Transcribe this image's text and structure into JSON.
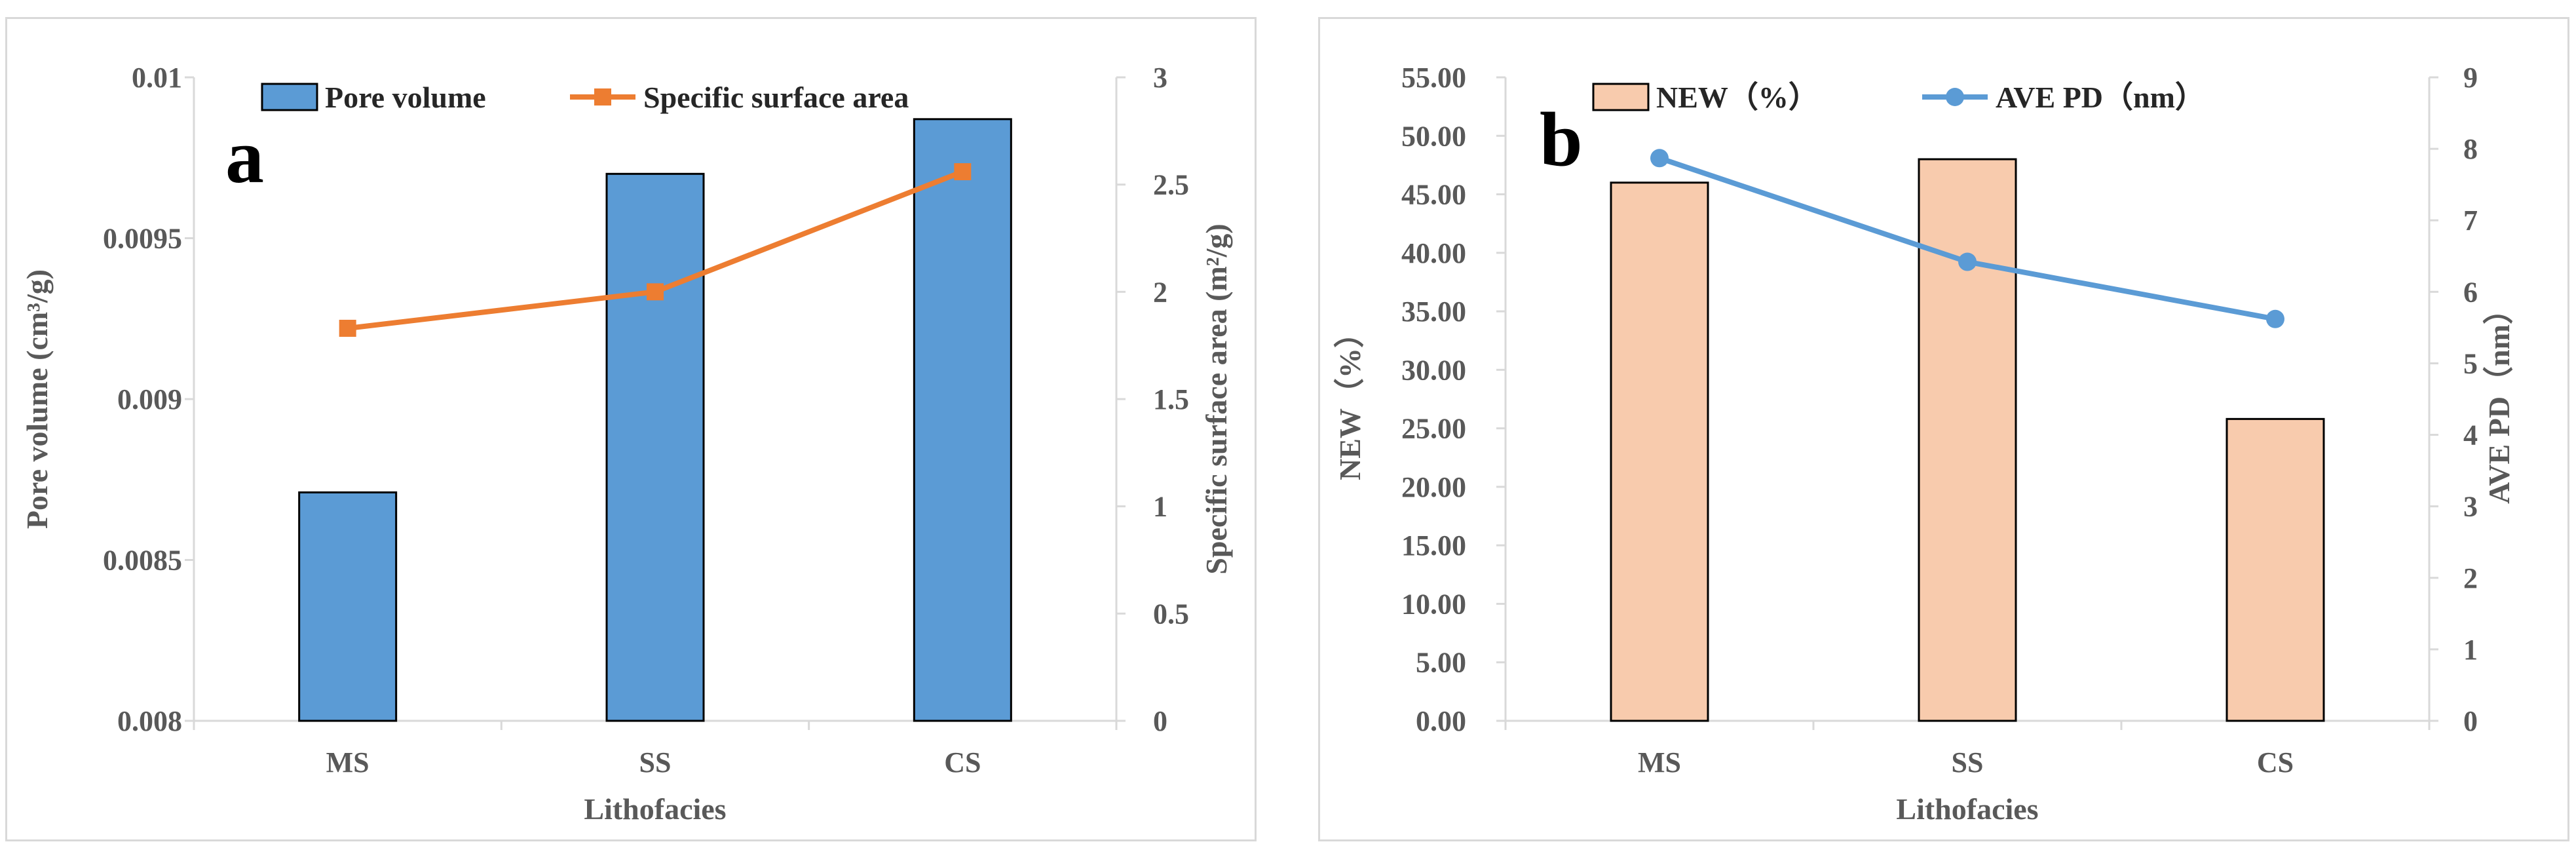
{
  "chart_data": [
    {
      "panel_label": "a",
      "type": "bar+line",
      "categories": [
        "MS",
        "SS",
        "CS"
      ],
      "xlabel": "Lithofacies",
      "series": [
        {
          "name": "Pore volume",
          "type": "bar",
          "axis": "left",
          "values": [
            0.00871,
            0.0097,
            0.00987
          ],
          "color": "#5b9bd5",
          "stroke": "#000000"
        },
        {
          "name": "Specific surface area",
          "type": "line",
          "axis": "right",
          "values": [
            1.83,
            2.0,
            2.56
          ],
          "color": "#ed7d31",
          "marker": "square"
        }
      ],
      "y_left": {
        "label": "Pore volume (cm³/g)",
        "lim": [
          0.008,
          0.01
        ],
        "ticks": [
          0.008,
          0.0085,
          0.009,
          0.0095,
          0.01
        ],
        "tick_labels": [
          "0.008",
          "0.0085",
          "0.009",
          "0.0095",
          "0.01"
        ]
      },
      "y_right": {
        "label": "Specific surface area (m²/g)",
        "lim": [
          0,
          3
        ],
        "ticks": [
          0,
          0.5,
          1,
          1.5,
          2,
          2.5,
          3
        ],
        "tick_labels": [
          "0",
          "0.5",
          "1",
          "1.5",
          "2",
          "2.5",
          "3"
        ]
      },
      "legend_position": "top"
    },
    {
      "panel_label": "b",
      "type": "bar+line",
      "categories": [
        "MS",
        "SS",
        "CS"
      ],
      "xlabel": "Lithofacies",
      "series": [
        {
          "name": "NEW（%）",
          "type": "bar",
          "axis": "left",
          "values": [
            46.0,
            48.0,
            25.8
          ],
          "color": "#f8cbad",
          "stroke": "#000000"
        },
        {
          "name": "AVE PD（nm）",
          "type": "line",
          "axis": "right",
          "values": [
            7.87,
            6.42,
            5.62
          ],
          "color": "#5b9bd5",
          "marker": "circle"
        }
      ],
      "y_left": {
        "label": "NEW（%）",
        "lim": [
          0,
          55
        ],
        "ticks": [
          0,
          5,
          10,
          15,
          20,
          25,
          30,
          35,
          40,
          45,
          50,
          55
        ],
        "tick_labels": [
          "0.00",
          "5.00",
          "10.00",
          "15.00",
          "20.00",
          "25.00",
          "30.00",
          "35.00",
          "40.00",
          "45.00",
          "50.00",
          "55.00"
        ]
      },
      "y_right": {
        "label": "AVE PD（nm）",
        "lim": [
          0,
          9
        ],
        "ticks": [
          0,
          1,
          2,
          3,
          4,
          5,
          6,
          7,
          8,
          9
        ],
        "tick_labels": [
          "0",
          "1",
          "2",
          "3",
          "4",
          "5",
          "6",
          "7",
          "8",
          "9"
        ]
      },
      "legend_position": "top"
    }
  ]
}
